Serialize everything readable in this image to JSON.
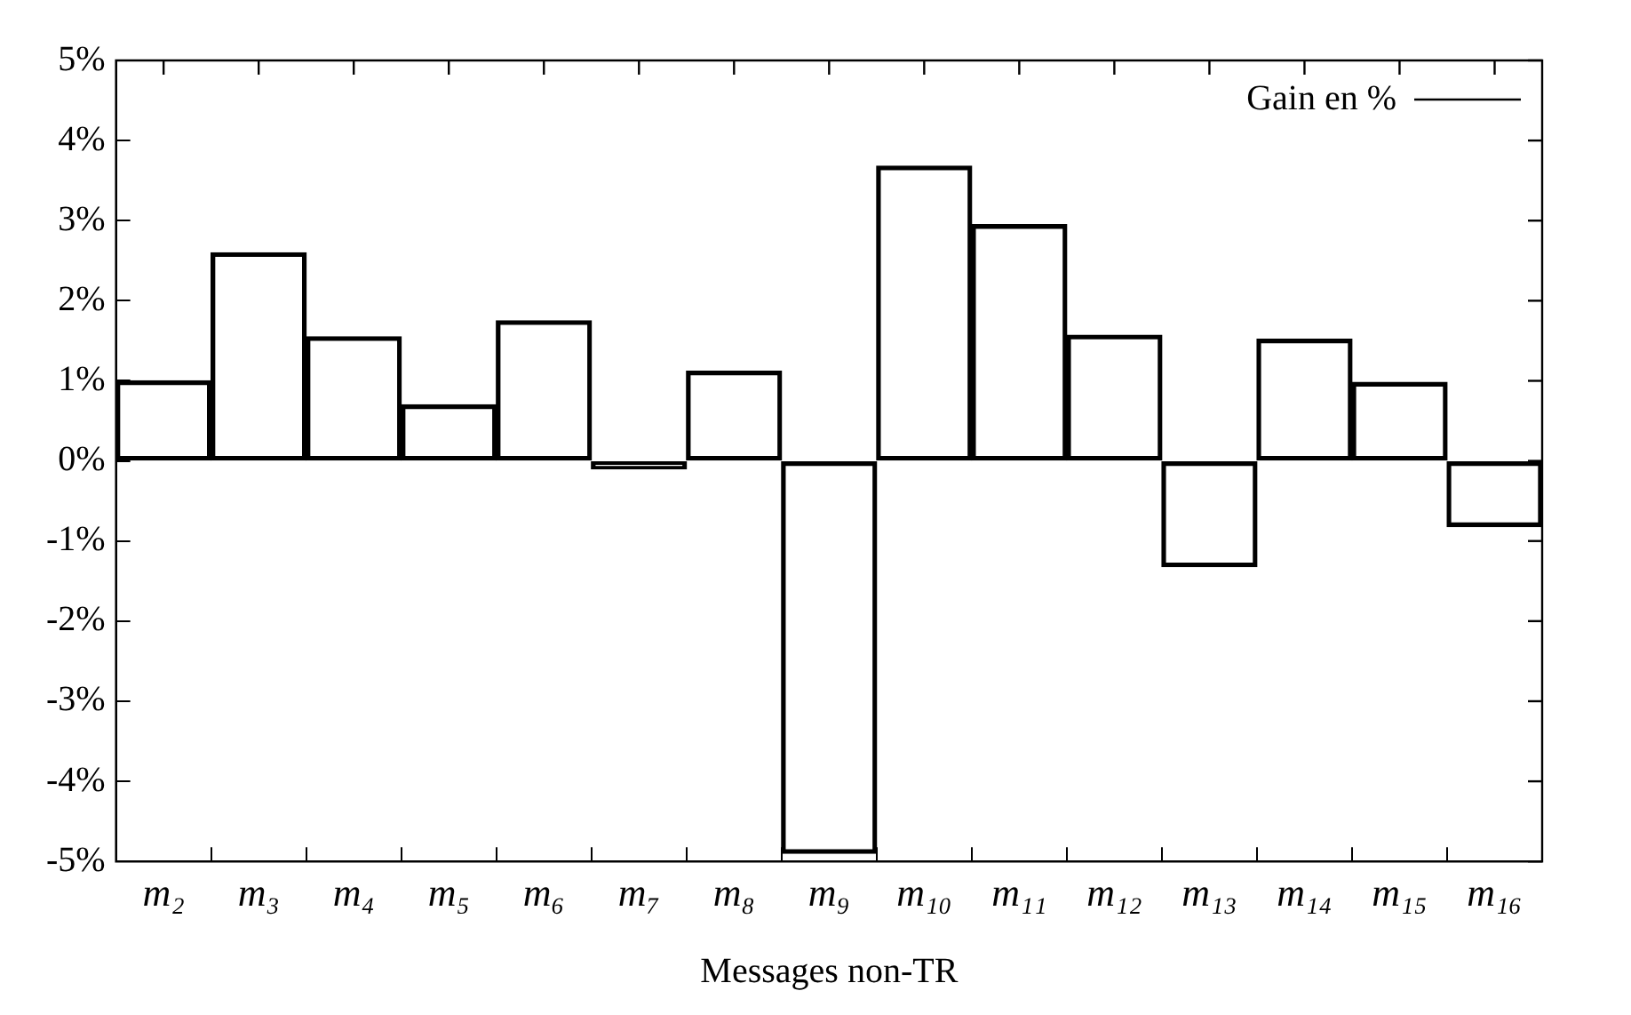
{
  "chart_data": {
    "type": "bar",
    "xlabel": "Messages non-TR",
    "categories": [
      "m₂",
      "m₃",
      "m₄",
      "m₅",
      "m₆",
      "m₇",
      "m₈",
      "m₉",
      "m₁₀",
      "m₁₁",
      "m₁₂",
      "m₁₃",
      "m₁₄",
      "m₁₅",
      "m₁₆"
    ],
    "series": [
      {
        "name": "Gain en %",
        "color": "#000000",
        "values": [
          1.0,
          2.6,
          1.55,
          0.7,
          1.75,
          -0.1,
          1.12,
          -4.9,
          3.68,
          2.95,
          1.57,
          -1.32,
          1.52,
          0.98,
          -0.82
        ]
      }
    ],
    "ylim": [
      -5,
      5
    ],
    "yticks": [
      {
        "value": -5,
        "label": "-5%"
      },
      {
        "value": -4,
        "label": "-4%"
      },
      {
        "value": -3,
        "label": "-3%"
      },
      {
        "value": -2,
        "label": "-2%"
      },
      {
        "value": -1,
        "label": "-1%"
      },
      {
        "value": 0,
        "label": "0%"
      },
      {
        "value": 1,
        "label": "1%"
      },
      {
        "value": 2,
        "label": "2%"
      },
      {
        "value": 3,
        "label": "3%"
      },
      {
        "value": 4,
        "label": "4%"
      },
      {
        "value": 5,
        "label": "5%"
      }
    ],
    "legend": "top right"
  }
}
